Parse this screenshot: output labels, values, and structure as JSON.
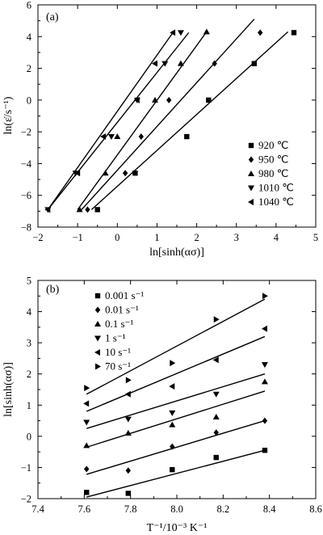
{
  "chart_data": [
    {
      "type": "scatter",
      "panel_label": "(a)",
      "xlabel": "ln[sinh(ασ)]",
      "ylabel": "ln(ε̇/s⁻¹)",
      "xlim": [
        -2,
        5
      ],
      "ylim": [
        -8,
        6
      ],
      "xticks": [
        -2,
        -1,
        0,
        1,
        2,
        3,
        4,
        5
      ],
      "yticks": [
        -8,
        -6,
        -4,
        -2,
        0,
        2,
        4,
        6
      ],
      "xtick_labels": [
        "−2",
        "−1",
        "0",
        "1",
        "2",
        "3",
        "4",
        "5"
      ],
      "ytick_labels": [
        "−8",
        "−6",
        "−4",
        "−2",
        "0",
        "2",
        "4",
        "6"
      ],
      "legend_position": "right",
      "series": [
        {
          "name": "920 ℃",
          "marker": "square",
          "points": [
            [
              -0.5,
              -6.9
            ],
            [
              0.45,
              -4.6
            ],
            [
              1.75,
              -2.3
            ],
            [
              2.3,
              0.0
            ],
            [
              3.45,
              2.3
            ],
            [
              4.45,
              4.25
            ]
          ],
          "fit": [
            [
              -0.65,
              -6.9
            ],
            [
              4.3,
              4.3
            ]
          ]
        },
        {
          "name": "950 ℃",
          "marker": "diamond",
          "points": [
            [
              -0.75,
              -6.9
            ],
            [
              0.2,
              -4.6
            ],
            [
              0.6,
              -2.3
            ],
            [
              1.3,
              0.0
            ],
            [
              2.45,
              2.3
            ],
            [
              3.6,
              4.25
            ]
          ],
          "fit": [
            [
              -0.9,
              -6.9
            ],
            [
              3.45,
              5.1
            ]
          ]
        },
        {
          "name": "980 ℃",
          "marker": "triangle-up",
          "points": [
            [
              -0.95,
              -6.9
            ],
            [
              -0.3,
              -4.6
            ],
            [
              0.0,
              -2.3
            ],
            [
              0.95,
              0.0
            ],
            [
              1.6,
              2.3
            ],
            [
              2.25,
              4.3
            ]
          ],
          "fit": [
            [
              -1.0,
              -6.9
            ],
            [
              2.25,
              4.3
            ]
          ]
        },
        {
          "name": "1010 ℃",
          "marker": "triangle-down",
          "points": [
            [
              -1.75,
              -6.9
            ],
            [
              -1.05,
              -4.6
            ],
            [
              -0.15,
              -2.3
            ],
            [
              0.5,
              0.0
            ],
            [
              1.2,
              2.3
            ],
            [
              1.6,
              4.25
            ]
          ],
          "fit": [
            [
              -1.75,
              -6.9
            ],
            [
              1.8,
              4.25
            ]
          ]
        },
        {
          "name": "1040 ℃",
          "marker": "triangle-left",
          "points": [
            [
              -1.75,
              -6.9
            ],
            [
              -1.0,
              -4.6
            ],
            [
              -0.35,
              -2.3
            ],
            [
              0.5,
              0.0
            ],
            [
              0.95,
              2.3
            ],
            [
              1.4,
              4.25
            ]
          ],
          "fit": [
            [
              -1.75,
              -6.9
            ],
            [
              1.4,
              4.25
            ]
          ]
        }
      ]
    },
    {
      "type": "scatter",
      "panel_label": "(b)",
      "xlabel": "T⁻¹/10⁻³ K⁻¹",
      "ylabel": "ln[sinh(ασ)]",
      "xlim": [
        7.4,
        8.6
      ],
      "ylim": [
        -2,
        5
      ],
      "xticks": [
        7.4,
        7.6,
        7.8,
        8.0,
        8.2,
        8.4,
        8.6
      ],
      "yticks": [
        -2,
        -1,
        0,
        1,
        2,
        3,
        4,
        5
      ],
      "xtick_labels": [
        "7.4",
        "7.6",
        "7.8",
        "8.0",
        "8.2",
        "8.4",
        "8.6"
      ],
      "ytick_labels": [
        "−2",
        "−1",
        "0",
        "1",
        "2",
        "3",
        "4",
        "5"
      ],
      "legend_position": "top-left",
      "series": [
        {
          "name": "0.001 s⁻¹",
          "marker": "square",
          "points": [
            [
              7.61,
              -1.8
            ],
            [
              7.79,
              -1.83
            ],
            [
              7.98,
              -1.07
            ],
            [
              8.17,
              -0.68
            ],
            [
              8.38,
              -0.45
            ]
          ],
          "fit": [
            [
              7.61,
              -1.95
            ],
            [
              8.38,
              -0.45
            ]
          ]
        },
        {
          "name": "0.01 s⁻¹",
          "marker": "diamond",
          "points": [
            [
              7.61,
              -1.05
            ],
            [
              7.79,
              -1.1
            ],
            [
              7.98,
              -0.33
            ],
            [
              8.17,
              0.12
            ],
            [
              8.38,
              0.5
            ]
          ],
          "fit": [
            [
              7.61,
              -1.22
            ],
            [
              8.38,
              0.5
            ]
          ]
        },
        {
          "name": "0.1 s⁻¹",
          "marker": "triangle-up",
          "points": [
            [
              7.61,
              -0.3
            ],
            [
              7.79,
              0.1
            ],
            [
              7.98,
              0.37
            ],
            [
              8.17,
              0.62
            ],
            [
              8.38,
              1.75
            ]
          ],
          "fit": [
            [
              7.61,
              -0.35
            ],
            [
              8.38,
              1.45
            ]
          ]
        },
        {
          "name": "1 s⁻¹",
          "marker": "triangle-down",
          "points": [
            [
              7.61,
              0.45
            ],
            [
              7.79,
              0.55
            ],
            [
              7.98,
              0.75
            ],
            [
              8.17,
              1.35
            ],
            [
              8.38,
              2.3
            ]
          ],
          "fit": [
            [
              7.61,
              0.25
            ],
            [
              8.38,
              2.0
            ]
          ]
        },
        {
          "name": "10 s⁻¹",
          "marker": "triangle-left",
          "points": [
            [
              7.61,
              1.05
            ],
            [
              7.79,
              1.35
            ],
            [
              7.98,
              1.6
            ],
            [
              8.17,
              2.45
            ],
            [
              8.38,
              3.45
            ]
          ],
          "fit": [
            [
              7.61,
              0.8
            ],
            [
              8.38,
              3.2
            ]
          ]
        },
        {
          "name": "70 s⁻¹",
          "marker": "triangle-right",
          "points": [
            [
              7.61,
              1.55
            ],
            [
              7.79,
              1.8
            ],
            [
              7.98,
              2.35
            ],
            [
              8.17,
              3.75
            ],
            [
              8.38,
              4.5
            ]
          ],
          "fit": [
            [
              7.61,
              1.35
            ],
            [
              8.38,
              4.4
            ]
          ]
        }
      ]
    }
  ]
}
